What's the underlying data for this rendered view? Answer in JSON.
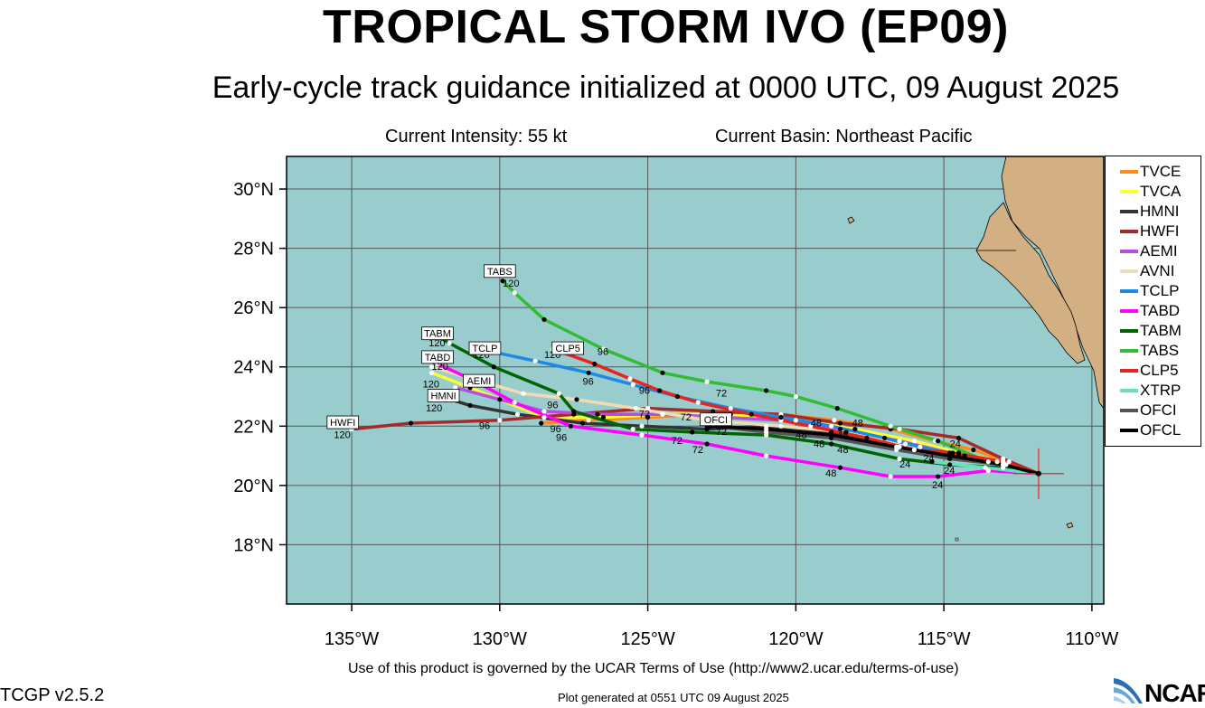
{
  "header": {
    "title": "TROPICAL STORM IVO (EP09)",
    "subtitle": "Early-cycle track guidance initialized at 0000 UTC, 09 August 2025",
    "current_intensity": "Current Intensity: 55 kt",
    "current_basin": "Current Basin: Northeast Pacific"
  },
  "footer": {
    "terms": "Use of this product is governed by the UCAR Terms of Use (http://www2.ucar.edu/terms-of-use)",
    "version": "TCGP v2.5.2",
    "generated": "Plot generated at 0551 UTC   09 August 2025",
    "logo_text": "NCAR"
  },
  "map": {
    "ocean_color": "#99cdcd",
    "land_color": "#d3b083",
    "lon_range": [
      -137.2,
      -109.6
    ],
    "lat_range": [
      16.0,
      31.1
    ],
    "lon_ticks": [
      {
        "value": -135,
        "label": "135°W"
      },
      {
        "value": -130,
        "label": "130°W"
      },
      {
        "value": -125,
        "label": "125°W"
      },
      {
        "value": -120,
        "label": "120°W"
      },
      {
        "value": -115,
        "label": "115°W"
      },
      {
        "value": -110,
        "label": "110°W"
      }
    ],
    "lat_ticks": [
      {
        "value": 18,
        "label": "18°N"
      },
      {
        "value": 20,
        "label": "20°N"
      },
      {
        "value": 22,
        "label": "22°N"
      },
      {
        "value": 24,
        "label": "24°N"
      },
      {
        "value": 26,
        "label": "26°N"
      },
      {
        "value": 28,
        "label": "28°N"
      },
      {
        "value": 30,
        "label": "30°N"
      }
    ],
    "storm_position": {
      "lon": -111.8,
      "lat": 20.4
    }
  },
  "tracks": [
    {
      "name": "TVCE",
      "color": "#ff8c1a",
      "points": [
        [
          -111.8,
          20.4
        ],
        [
          -112.8,
          20.8
        ],
        [
          -114.0,
          21.2
        ],
        [
          -115.3,
          21.5
        ],
        [
          -116.8,
          21.9
        ],
        [
          -118.7,
          22.2
        ],
        [
          -120.5,
          22.4
        ],
        [
          -122.8,
          22.4
        ],
        [
          -125.0,
          22.3
        ],
        [
          -127.0,
          22.2
        ],
        [
          -128.6,
          22.1
        ]
      ]
    },
    {
      "name": "TVCA",
      "color": "#ffff33",
      "points": [
        [
          -111.8,
          20.4
        ],
        [
          -113.0,
          20.8
        ],
        [
          -114.5,
          21.1
        ],
        [
          -116.0,
          21.5
        ],
        [
          -118.0,
          21.9
        ],
        [
          -120.0,
          22.2
        ],
        [
          -122.2,
          22.4
        ],
        [
          -124.5,
          22.4
        ],
        [
          -126.5,
          22.3
        ],
        [
          -128.5,
          22.3
        ],
        [
          -131.0,
          23.3
        ],
        [
          -132.3,
          23.8
        ]
      ]
    },
    {
      "name": "HMNI",
      "color": "#333333",
      "points": [
        [
          -111.8,
          20.4
        ],
        [
          -113.0,
          20.8
        ],
        [
          -114.8,
          21.0
        ],
        [
          -116.5,
          21.3
        ],
        [
          -118.8,
          21.8
        ],
        [
          -121.0,
          22.0
        ],
        [
          -123.0,
          21.9
        ],
        [
          -125.2,
          22.0
        ],
        [
          -127.2,
          22.1
        ],
        [
          -129.4,
          22.4
        ],
        [
          -131.0,
          22.7
        ],
        [
          -132.0,
          23.0
        ]
      ]
    },
    {
      "name": "HWFI",
      "color": "#a52a2a",
      "points": [
        [
          -111.8,
          20.4
        ],
        [
          -113.0,
          20.9
        ],
        [
          -114.5,
          21.6
        ],
        [
          -116.5,
          21.9
        ],
        [
          -118.5,
          22.1
        ],
        [
          -120.5,
          22.4
        ],
        [
          -122.8,
          22.5
        ],
        [
          -125.0,
          22.6
        ],
        [
          -127.5,
          22.4
        ],
        [
          -130.0,
          22.2
        ],
        [
          -133.0,
          22.1
        ],
        [
          -135.0,
          21.9
        ]
      ]
    },
    {
      "name": "AEMI",
      "color": "#b84ee0",
      "points": [
        [
          -111.8,
          20.4
        ],
        [
          -113.2,
          20.8
        ],
        [
          -114.8,
          21.1
        ],
        [
          -116.5,
          21.5
        ],
        [
          -118.5,
          21.9
        ],
        [
          -120.5,
          22.2
        ],
        [
          -122.5,
          22.3
        ],
        [
          -124.5,
          22.4
        ],
        [
          -126.7,
          22.4
        ],
        [
          -128.5,
          22.5
        ],
        [
          -130.0,
          22.9
        ],
        [
          -131.5,
          23.3
        ]
      ]
    },
    {
      "name": "AVNI",
      "color": "#f0dcb4",
      "points": [
        [
          -111.8,
          20.4
        ],
        [
          -113.0,
          20.7
        ],
        [
          -114.5,
          21.0
        ],
        [
          -116.3,
          21.4
        ],
        [
          -118.3,
          21.8
        ],
        [
          -120.5,
          22.0
        ],
        [
          -123.0,
          22.2
        ],
        [
          -125.4,
          22.6
        ],
        [
          -127.4,
          22.9
        ],
        [
          -129.2,
          23.1
        ],
        [
          -130.6,
          23.5
        ],
        [
          -132.3,
          24.0
        ]
      ]
    },
    {
      "name": "TCLP",
      "color": "#1e88e5",
      "points": [
        [
          -111.8,
          20.4
        ],
        [
          -112.9,
          20.7
        ],
        [
          -114.3,
          21.0
        ],
        [
          -115.8,
          21.3
        ],
        [
          -117.0,
          21.6
        ],
        [
          -118.8,
          22.0
        ],
        [
          -120.5,
          22.3
        ],
        [
          -122.2,
          22.6
        ],
        [
          -124.0,
          23.0
        ],
        [
          -125.5,
          23.4
        ],
        [
          -127.0,
          23.8
        ],
        [
          -128.8,
          24.2
        ],
        [
          -130.2,
          24.5
        ],
        [
          -130.8,
          24.6
        ]
      ]
    },
    {
      "name": "TABD",
      "color": "#ff00ff",
      "points": [
        [
          -111.8,
          20.4
        ],
        [
          -113.5,
          20.5
        ],
        [
          -115.2,
          20.3
        ],
        [
          -116.8,
          20.3
        ],
        [
          -118.5,
          20.6
        ],
        [
          -121.0,
          21.0
        ],
        [
          -123.0,
          21.4
        ],
        [
          -125.2,
          21.7
        ],
        [
          -127.6,
          22.0
        ],
        [
          -129.5,
          22.8
        ],
        [
          -131.0,
          23.6
        ],
        [
          -132.1,
          24.1
        ]
      ]
    },
    {
      "name": "TABM",
      "color": "#006400",
      "points": [
        [
          -111.8,
          20.4
        ],
        [
          -113.0,
          20.6
        ],
        [
          -114.8,
          20.7
        ],
        [
          -116.5,
          20.9
        ],
        [
          -118.8,
          21.4
        ],
        [
          -121.0,
          21.7
        ],
        [
          -123.5,
          21.8
        ],
        [
          -125.5,
          21.9
        ],
        [
          -127.5,
          22.5
        ],
        [
          -128.0,
          23.1
        ],
        [
          -130.2,
          24.0
        ],
        [
          -131.7,
          24.8
        ],
        [
          -132.2,
          25.1
        ]
      ]
    },
    {
      "name": "TABS",
      "color": "#33bb33",
      "points": [
        [
          -111.8,
          20.4
        ],
        [
          -113.5,
          20.8
        ],
        [
          -115.2,
          21.5
        ],
        [
          -116.8,
          22.0
        ],
        [
          -118.6,
          22.6
        ],
        [
          -120.0,
          23.0
        ],
        [
          -121.0,
          23.2
        ],
        [
          -123.0,
          23.5
        ],
        [
          -124.5,
          23.8
        ],
        [
          -126.5,
          24.6
        ],
        [
          -128.5,
          25.6
        ],
        [
          -129.5,
          26.5
        ],
        [
          -129.9,
          26.9
        ]
      ]
    },
    {
      "name": "CLP5",
      "color": "#e8221c",
      "points": [
        [
          -111.8,
          20.4
        ],
        [
          -113.0,
          20.8
        ],
        [
          -114.7,
          21.1
        ],
        [
          -116.0,
          21.2
        ],
        [
          -117.6,
          21.6
        ],
        [
          -119.5,
          22.0
        ],
        [
          -121.5,
          22.4
        ],
        [
          -123.3,
          22.8
        ],
        [
          -124.6,
          23.2
        ],
        [
          -125.6,
          23.6
        ],
        [
          -126.8,
          24.1
        ],
        [
          -128.2,
          24.6
        ]
      ]
    },
    {
      "name": "XTRP",
      "color": "#66e0c0",
      "points": [
        [
          -111.8,
          20.4
        ],
        [
          -113.6,
          20.6
        ],
        [
          -115.4,
          20.8
        ]
      ]
    },
    {
      "name": "OFCI",
      "color": "#555555",
      "points": [
        [
          -111.8,
          20.4
        ],
        [
          -113.0,
          20.7
        ],
        [
          -114.8,
          20.9
        ],
        [
          -116.6,
          21.2
        ],
        [
          -118.8,
          21.6
        ],
        [
          -121.0,
          21.8
        ],
        [
          -122.9,
          22.0
        ]
      ]
    },
    {
      "name": "OFCL",
      "color": "#000000",
      "points": [
        [
          -111.8,
          20.4
        ],
        [
          -113.0,
          20.7
        ],
        [
          -114.8,
          21.0
        ],
        [
          -116.6,
          21.3
        ],
        [
          -118.8,
          21.7
        ],
        [
          -121.0,
          21.9
        ],
        [
          -123.0,
          22.0
        ]
      ]
    }
  ],
  "end_labels": [
    {
      "text": "TABS",
      "lon": -130.0,
      "lat": 27.2
    },
    {
      "text": "TABM",
      "lon": -132.1,
      "lat": 25.1
    },
    {
      "text": "TCLP",
      "lon": -130.5,
      "lat": 24.6
    },
    {
      "text": "CLP5",
      "lon": -127.7,
      "lat": 24.6
    },
    {
      "text": "TABD",
      "lon": -132.1,
      "lat": 24.3
    },
    {
      "text": "AEMI",
      "lon": -130.7,
      "lat": 23.5
    },
    {
      "text": "HMNI",
      "lon": -131.9,
      "lat": 23.0
    },
    {
      "text": "HWFI",
      "lon": -135.3,
      "lat": 22.1
    },
    {
      "text": "OFCI",
      "lon": -122.7,
      "lat": 22.2
    }
  ],
  "hour_labels": [
    {
      "text": "120",
      "lon": -129.9,
      "lat": 26.7
    },
    {
      "text": "120",
      "lon": -132.4,
      "lat": 24.7
    },
    {
      "text": "120",
      "lon": -130.9,
      "lat": 24.3
    },
    {
      "text": "120",
      "lon": -128.5,
      "lat": 24.3
    },
    {
      "text": "120",
      "lon": -132.3,
      "lat": 23.9
    },
    {
      "text": "120",
      "lon": -132.6,
      "lat": 23.3
    },
    {
      "text": "120",
      "lon": -132.5,
      "lat": 22.5
    },
    {
      "text": "120",
      "lon": -135.6,
      "lat": 21.6
    },
    {
      "text": "96",
      "lon": -126.7,
      "lat": 24.4
    },
    {
      "text": "96",
      "lon": -127.2,
      "lat": 23.4
    },
    {
      "text": "96",
      "lon": -125.3,
      "lat": 23.1
    },
    {
      "text": "96",
      "lon": -128.4,
      "lat": 22.6
    },
    {
      "text": "96",
      "lon": -130.7,
      "lat": 21.9
    },
    {
      "text": "96",
      "lon": -128.3,
      "lat": 21.8
    },
    {
      "text": "96",
      "lon": -128.1,
      "lat": 21.5
    },
    {
      "text": "72",
      "lon": -122.7,
      "lat": 23.0
    },
    {
      "text": "72",
      "lon": -125.3,
      "lat": 22.3
    },
    {
      "text": "72",
      "lon": -123.9,
      "lat": 22.2
    },
    {
      "text": "72",
      "lon": -124.2,
      "lat": 21.4
    },
    {
      "text": "72",
      "lon": -123.5,
      "lat": 21.1
    },
    {
      "text": "72",
      "lon": -122.7,
      "lat": 21.7
    },
    {
      "text": "48",
      "lon": -119.5,
      "lat": 22.0
    },
    {
      "text": "48",
      "lon": -120.0,
      "lat": 21.6
    },
    {
      "text": "48",
      "lon": -119.4,
      "lat": 21.3
    },
    {
      "text": "48",
      "lon": -118.1,
      "lat": 22.0
    },
    {
      "text": "48",
      "lon": -118.6,
      "lat": 21.6
    },
    {
      "text": "48",
      "lon": -118.6,
      "lat": 21.1
    },
    {
      "text": "48",
      "lon": -119.0,
      "lat": 20.3
    },
    {
      "text": "24",
      "lon": -114.8,
      "lat": 21.3
    },
    {
      "text": "24",
      "lon": -116.5,
      "lat": 20.6
    },
    {
      "text": "24",
      "lon": -115.7,
      "lat": 20.8
    },
    {
      "text": "24",
      "lon": -115.0,
      "lat": 20.4
    },
    {
      "text": "24",
      "lon": -115.4,
      "lat": 19.9
    }
  ],
  "legend": {
    "items": [
      {
        "label": "TVCE",
        "color": "#ff8c1a"
      },
      {
        "label": "TVCA",
        "color": "#ffff33"
      },
      {
        "label": "HMNI",
        "color": "#333333"
      },
      {
        "label": "HWFI",
        "color": "#a52a2a"
      },
      {
        "label": "AEMI",
        "color": "#b84ee0"
      },
      {
        "label": "AVNI",
        "color": "#f0dcb4"
      },
      {
        "label": "TCLP",
        "color": "#1e88e5"
      },
      {
        "label": "TABD",
        "color": "#ff00ff"
      },
      {
        "label": "TABM",
        "color": "#006400"
      },
      {
        "label": "TABS",
        "color": "#33bb33"
      },
      {
        "label": "CLP5",
        "color": "#e8221c"
      },
      {
        "label": "XTRP",
        "color": "#66e0c0"
      },
      {
        "label": "OFCI",
        "color": "#555555"
      },
      {
        "label": "OFCL",
        "color": "#000000"
      }
    ]
  }
}
